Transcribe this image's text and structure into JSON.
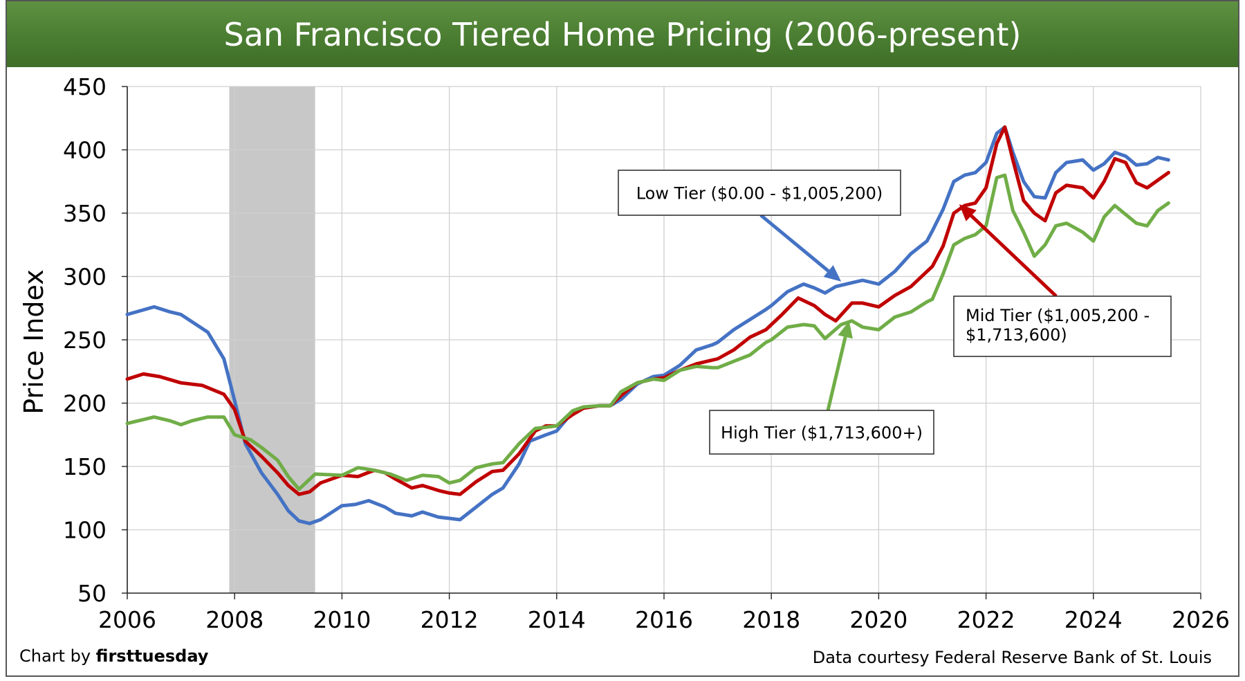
{
  "title": "San Francisco Tiered Home Pricing (2006-present)",
  "credit_left_prefix": "Chart by ",
  "credit_left_brand": "firsttuesday",
  "credit_right": "Data courtesy Federal Reserve Bank of St. Louis",
  "colors": {
    "low": "#4472c4",
    "mid": "#c00000",
    "high": "#70ad47",
    "recession": "#c8c8c8",
    "header": "#4e8134"
  },
  "chart_data": {
    "type": "line",
    "ylabel": "Price Index",
    "xlabel": "",
    "xlim": [
      2006,
      2026
    ],
    "ylim": [
      50,
      450
    ],
    "x_ticks": [
      2006,
      2008,
      2010,
      2012,
      2014,
      2016,
      2018,
      2020,
      2022,
      2024,
      2026
    ],
    "y_ticks": [
      50,
      100,
      150,
      200,
      250,
      300,
      350,
      400,
      450
    ],
    "grid": true,
    "shaded_region": {
      "x_start": 2007.9,
      "x_end": 2009.5
    },
    "annotations": [
      {
        "id": "low",
        "lines": [
          "Low Tier ($0.00 - $1,005,200)"
        ],
        "arrow_target": [
          2019.3,
          296
        ]
      },
      {
        "id": "mid",
        "lines": [
          "Mid Tier ($1,005,200 -",
          "$1,713,600)"
        ],
        "arrow_target": [
          2021.5,
          357
        ]
      },
      {
        "id": "high",
        "lines": [
          "High Tier ($1,713,600+)"
        ],
        "arrow_target": [
          2019.45,
          265
        ]
      }
    ],
    "series": [
      {
        "id": "low",
        "x": [
          2006.0,
          2006.5,
          2006.8,
          2007.0,
          2007.5,
          2007.8,
          2008.0,
          2008.2,
          2008.5,
          2008.8,
          2009.0,
          2009.2,
          2009.4,
          2009.6,
          2010.0,
          2010.25,
          2010.5,
          2010.8,
          2011.0,
          2011.3,
          2011.5,
          2011.8,
          2012.0,
          2012.2,
          2012.5,
          2012.8,
          2013.0,
          2013.3,
          2013.5,
          2013.8,
          2014.0,
          2014.3,
          2014.5,
          2014.8,
          2015.0,
          2015.2,
          2015.5,
          2015.8,
          2016.0,
          2016.3,
          2016.6,
          2016.9,
          2017.0,
          2017.3,
          2017.6,
          2017.9,
          2018.0,
          2018.3,
          2018.6,
          2018.8,
          2019.0,
          2019.2,
          2019.5,
          2019.7,
          2020.0,
          2020.3,
          2020.6,
          2020.9,
          2021.0,
          2021.2,
          2021.4,
          2021.6,
          2021.8,
          2022.0,
          2022.2,
          2022.35,
          2022.5,
          2022.7,
          2022.9,
          2023.1,
          2023.3,
          2023.5,
          2023.8,
          2024.0,
          2024.2,
          2024.4,
          2024.6,
          2024.8,
          2025.0,
          2025.2,
          2025.4
        ],
        "values": [
          270,
          276,
          272,
          270,
          256,
          235,
          202,
          168,
          145,
          128,
          115,
          107,
          105,
          108,
          119,
          120,
          123,
          118,
          113,
          111,
          114,
          110,
          109,
          108,
          118,
          128,
          133,
          152,
          170,
          175,
          178,
          193,
          196,
          198,
          198,
          203,
          215,
          221,
          222,
          230,
          242,
          246,
          248,
          258,
          266,
          274,
          277,
          288,
          294,
          291,
          287,
          292,
          295,
          297,
          294,
          304,
          318,
          328,
          336,
          353,
          375,
          380,
          382,
          390,
          413,
          418,
          398,
          375,
          363,
          362,
          382,
          390,
          392,
          384,
          389,
          398,
          395,
          388,
          389,
          394,
          392
        ]
      },
      {
        "id": "mid",
        "x": [
          2006.0,
          2006.3,
          2006.6,
          2007.0,
          2007.4,
          2007.8,
          2008.0,
          2008.2,
          2008.5,
          2008.8,
          2009.0,
          2009.2,
          2009.4,
          2009.6,
          2010.0,
          2010.3,
          2010.6,
          2010.8,
          2011.0,
          2011.3,
          2011.5,
          2011.8,
          2012.0,
          2012.2,
          2012.5,
          2012.8,
          2013.0,
          2013.3,
          2013.6,
          2013.8,
          2014.0,
          2014.3,
          2014.5,
          2014.8,
          2015.0,
          2015.2,
          2015.5,
          2015.8,
          2016.0,
          2016.3,
          2016.6,
          2016.9,
          2017.0,
          2017.3,
          2017.6,
          2017.9,
          2018.0,
          2018.2,
          2018.5,
          2018.8,
          2019.0,
          2019.2,
          2019.5,
          2019.7,
          2020.0,
          2020.3,
          2020.6,
          2020.9,
          2021.0,
          2021.2,
          2021.4,
          2021.6,
          2021.8,
          2022.0,
          2022.2,
          2022.35,
          2022.5,
          2022.7,
          2022.9,
          2023.1,
          2023.3,
          2023.5,
          2023.8,
          2024.0,
          2024.2,
          2024.4,
          2024.6,
          2024.8,
          2025.0,
          2025.2,
          2025.4
        ],
        "values": [
          219,
          223,
          221,
          216,
          214,
          207,
          195,
          170,
          158,
          145,
          135,
          128,
          130,
          137,
          143,
          142,
          147,
          145,
          140,
          133,
          135,
          131,
          129,
          128,
          138,
          146,
          147,
          160,
          178,
          182,
          182,
          191,
          196,
          198,
          198,
          206,
          216,
          219,
          220,
          226,
          231,
          234,
          235,
          242,
          252,
          258,
          262,
          270,
          283,
          277,
          270,
          265,
          279,
          279,
          276,
          285,
          292,
          304,
          308,
          324,
          350,
          356,
          358,
          370,
          405,
          418,
          392,
          360,
          350,
          344,
          366,
          372,
          370,
          362,
          375,
          393,
          390,
          374,
          370,
          376,
          382
        ]
      },
      {
        "id": "high",
        "x": [
          2006.0,
          2006.5,
          2006.8,
          2007.0,
          2007.2,
          2007.5,
          2007.8,
          2008.0,
          2008.3,
          2008.5,
          2008.8,
          2009.0,
          2009.2,
          2009.5,
          2010.0,
          2010.3,
          2010.6,
          2010.9,
          2011.2,
          2011.5,
          2011.8,
          2012.0,
          2012.2,
          2012.5,
          2012.8,
          2013.0,
          2013.3,
          2013.6,
          2013.8,
          2014.0,
          2014.3,
          2014.5,
          2014.8,
          2015.0,
          2015.2,
          2015.5,
          2015.8,
          2016.0,
          2016.3,
          2016.6,
          2016.9,
          2017.0,
          2017.3,
          2017.6,
          2017.9,
          2018.0,
          2018.3,
          2018.6,
          2018.8,
          2019.0,
          2019.3,
          2019.5,
          2019.7,
          2020.0,
          2020.3,
          2020.6,
          2020.9,
          2021.0,
          2021.2,
          2021.4,
          2021.6,
          2021.8,
          2022.0,
          2022.2,
          2022.35,
          2022.5,
          2022.7,
          2022.9,
          2023.1,
          2023.3,
          2023.5,
          2023.8,
          2024.0,
          2024.2,
          2024.4,
          2024.6,
          2024.8,
          2025.0,
          2025.2,
          2025.4
        ],
        "values": [
          184,
          189,
          186,
          183,
          186,
          189,
          189,
          175,
          171,
          165,
          155,
          142,
          132,
          144,
          143,
          149,
          147,
          144,
          139,
          143,
          142,
          137,
          139,
          149,
          152,
          153,
          168,
          180,
          181,
          182,
          194,
          197,
          198,
          198,
          209,
          216,
          219,
          218,
          226,
          229,
          228,
          228,
          233,
          238,
          248,
          250,
          260,
          262,
          261,
          251,
          262,
          265,
          260,
          258,
          268,
          272,
          280,
          282,
          302,
          325,
          330,
          333,
          340,
          378,
          380,
          352,
          335,
          316,
          325,
          340,
          342,
          335,
          328,
          347,
          356,
          349,
          342,
          340,
          352,
          358
        ]
      }
    ]
  }
}
